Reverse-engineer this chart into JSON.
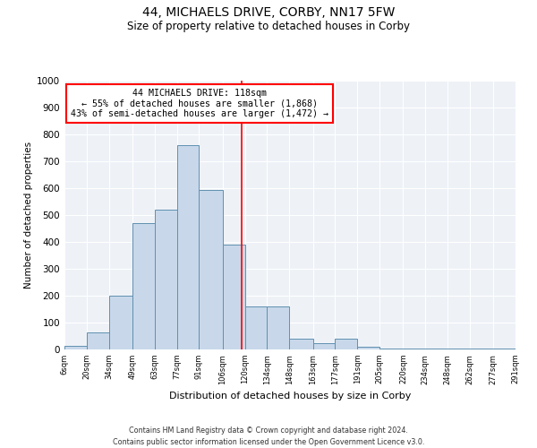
{
  "title": "44, MICHAELS DRIVE, CORBY, NN17 5FW",
  "subtitle": "Size of property relative to detached houses in Corby",
  "xlabel": "Distribution of detached houses by size in Corby",
  "ylabel": "Number of detached properties",
  "footer_line1": "Contains HM Land Registry data © Crown copyright and database right 2024.",
  "footer_line2": "Contains public sector information licensed under the Open Government Licence v3.0.",
  "annotation_line1": "44 MICHAELS DRIVE: 118sqm",
  "annotation_line2": "← 55% of detached houses are smaller (1,868)",
  "annotation_line3": "43% of semi-detached houses are larger (1,472) →",
  "property_size": 118,
  "bar_color": "#c8d8ea",
  "bar_edge_color": "#6090b0",
  "vline_color": "red",
  "annotation_box_color": "red",
  "background_color": "#eef2f7",
  "bins": [
    6,
    20,
    34,
    49,
    63,
    77,
    91,
    106,
    120,
    134,
    148,
    163,
    177,
    191,
    205,
    220,
    234,
    248,
    262,
    277,
    291
  ],
  "bin_labels": [
    "6sqm",
    "20sqm",
    "34sqm",
    "49sqm",
    "63sqm",
    "77sqm",
    "91sqm",
    "106sqm",
    "120sqm",
    "134sqm",
    "148sqm",
    "163sqm",
    "177sqm",
    "191sqm",
    "205sqm",
    "220sqm",
    "234sqm",
    "248sqm",
    "262sqm",
    "277sqm",
    "291sqm"
  ],
  "values": [
    15,
    65,
    200,
    470,
    520,
    760,
    595,
    390,
    160,
    160,
    40,
    25,
    40,
    10,
    5,
    5,
    5,
    5,
    3,
    3
  ],
  "ylim": [
    0,
    1000
  ],
  "yticks": [
    0,
    100,
    200,
    300,
    400,
    500,
    600,
    700,
    800,
    900,
    1000
  ]
}
